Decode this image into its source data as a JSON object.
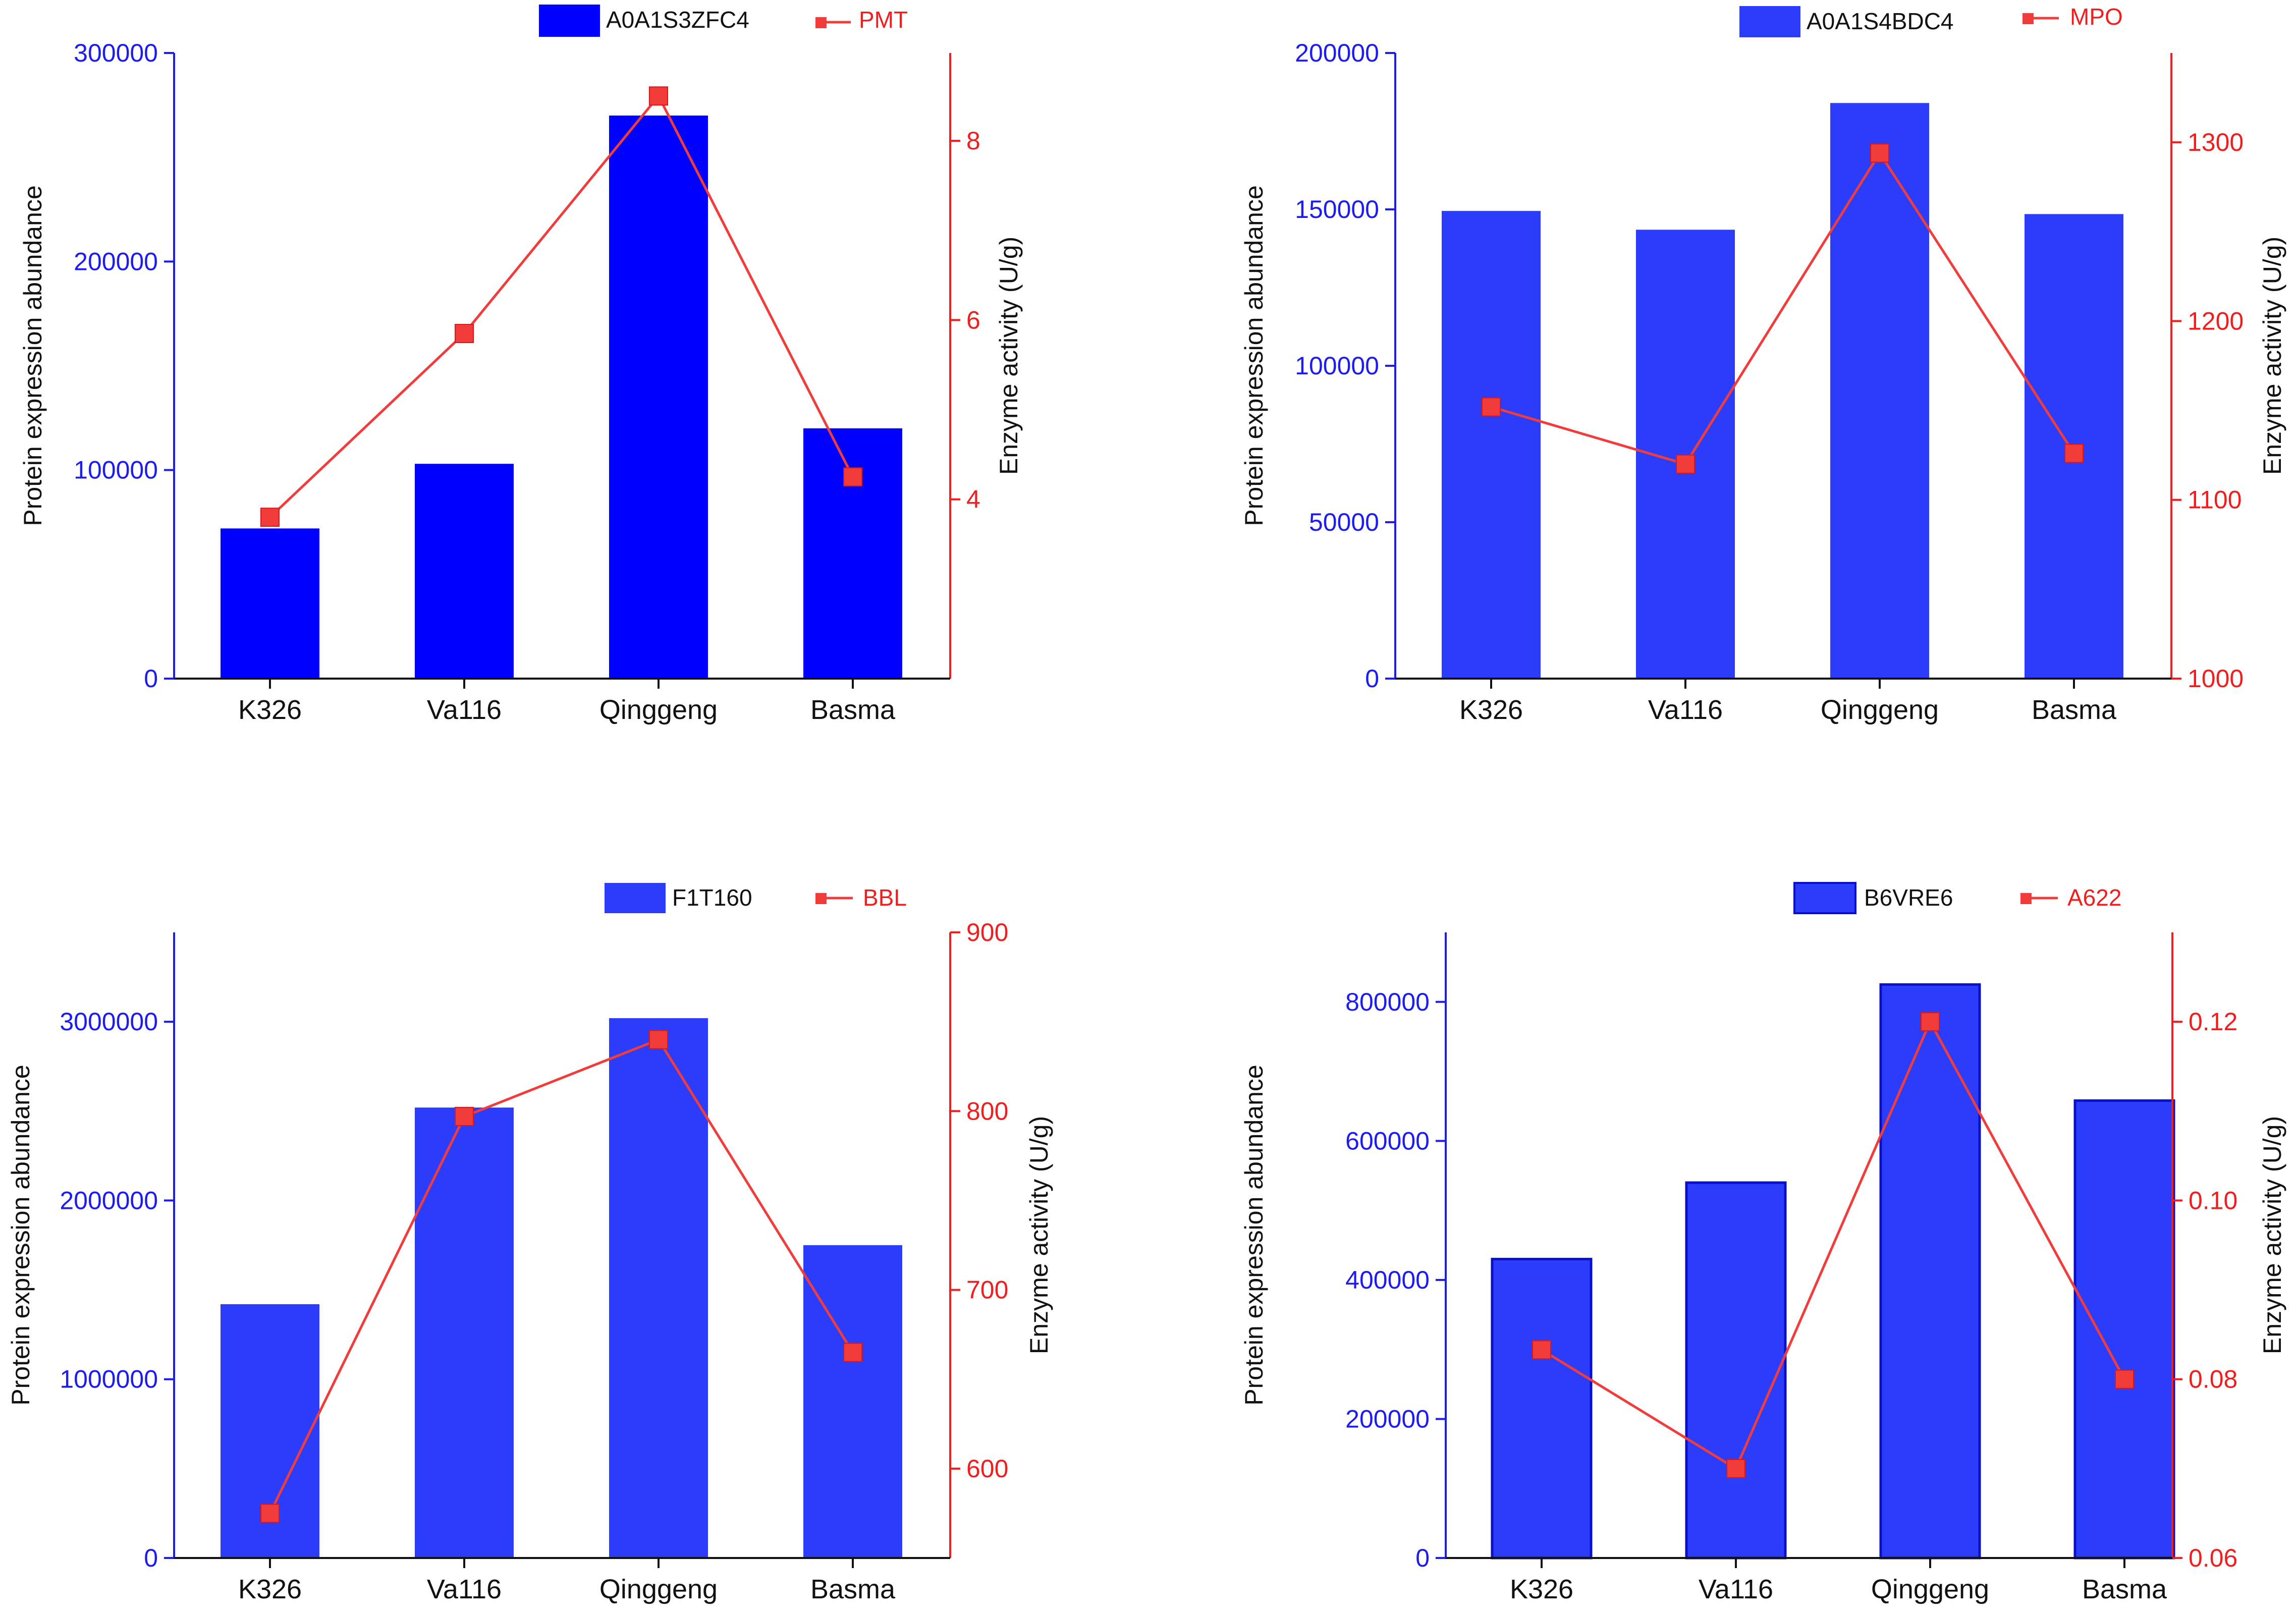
{
  "colors": {
    "bar_dark": "#0000ff",
    "bar_light": "#2b3dfb",
    "bar_edge": "#0a10c8",
    "line": "#f23c3c",
    "left_axis_text": "#1c1cf2",
    "right_axis_text": "#f01e1e",
    "tick_label": "#111111"
  },
  "chart_data": [
    {
      "type": "bar+line",
      "categories": [
        "K326",
        "Va116",
        "Qinggeng",
        "Basma"
      ],
      "series": [
        {
          "name": "A0A1S3ZFC4",
          "kind": "bar",
          "axis": "left",
          "values": [
            72000,
            103000,
            270000,
            120000
          ]
        },
        {
          "name": "PMT",
          "kind": "line",
          "axis": "right",
          "values": [
            3.8,
            5.85,
            8.5,
            4.25
          ]
        }
      ],
      "ylabel": "Protein expression abundance",
      "y2label": "Enzyme activity (U/g)",
      "ylim": [
        0,
        300000
      ],
      "yticks": [
        0,
        100000,
        200000,
        300000
      ],
      "ytick_labels": [
        "0",
        "100000",
        "200000",
        "300000"
      ],
      "y2lim": [
        2,
        8.98
      ],
      "y2ticks": [
        4,
        6,
        8
      ],
      "y2tick_labels": [
        "4",
        "6",
        "8"
      ],
      "legend_position": "top-center"
    },
    {
      "type": "bar+line",
      "categories": [
        "K326",
        "Va116",
        "Qinggeng",
        "Basma"
      ],
      "series": [
        {
          "name": "A0A1S4BDC4",
          "kind": "bar",
          "axis": "left",
          "values": [
            149500,
            143500,
            184000,
            148500
          ]
        },
        {
          "name": "MPO",
          "kind": "line",
          "axis": "right",
          "values": [
            1152,
            1120,
            1294,
            1126
          ]
        }
      ],
      "ylabel": "Protein expression abundance",
      "y2label": "Enzyme activity (U/g)",
      "ylim": [
        0,
        200000
      ],
      "yticks": [
        0,
        50000,
        100000,
        150000,
        200000
      ],
      "ytick_labels": [
        "0",
        "50000",
        "100000",
        "150000",
        "200000"
      ],
      "y2lim": [
        1000,
        1350
      ],
      "y2ticks": [
        1000,
        1100,
        1200,
        1300
      ],
      "y2tick_labels": [
        "1000",
        "1100",
        "1200",
        "1300"
      ],
      "legend_position": "top-center"
    },
    {
      "type": "bar+line",
      "categories": [
        "K326",
        "Va116",
        "Qinggeng",
        "Basma"
      ],
      "series": [
        {
          "name": "F1T160",
          "kind": "bar",
          "axis": "left",
          "values": [
            1420000,
            2520000,
            3020000,
            1750000
          ]
        },
        {
          "name": "BBL",
          "kind": "line",
          "axis": "right",
          "values": [
            575,
            797,
            840,
            665
          ]
        }
      ],
      "ylabel": "Protein expression abundance",
      "y2label": "Enzyme activity (U/g)",
      "ylim": [
        0,
        3500000
      ],
      "yticks": [
        0,
        1000000,
        2000000,
        3000000
      ],
      "ytick_labels": [
        "0",
        "1000000",
        "2000000",
        "3000000"
      ],
      "y2lim": [
        550,
        900
      ],
      "y2ticks": [
        600,
        700,
        800,
        900
      ],
      "y2tick_labels": [
        "600",
        "700",
        "800",
        "900"
      ],
      "legend_position": "top-center"
    },
    {
      "type": "bar+line",
      "categories": [
        "K326",
        "Va116",
        "Qinggeng",
        "Basma"
      ],
      "series": [
        {
          "name": "B6VRE6",
          "kind": "bar",
          "axis": "left",
          "values": [
            430000,
            540000,
            825000,
            658000
          ]
        },
        {
          "name": "A622",
          "kind": "line",
          "axis": "right",
          "values": [
            0.0833,
            0.07,
            0.12,
            0.08
          ]
        }
      ],
      "ylabel": "Protein expression abundance",
      "y2label": "Enzyme activity (U/g)",
      "ylim": [
        0,
        900000
      ],
      "yticks": [
        0,
        200000,
        400000,
        600000,
        800000
      ],
      "ytick_labels": [
        "0",
        "200000",
        "400000",
        "600000",
        "800000"
      ],
      "y2lim": [
        0.06,
        0.13
      ],
      "y2ticks": [
        0.06,
        0.08,
        0.1,
        0.12
      ],
      "y2tick_labels": [
        "0.06",
        "0.08",
        "0.10",
        "0.12"
      ],
      "legend_position": "top-center"
    }
  ]
}
